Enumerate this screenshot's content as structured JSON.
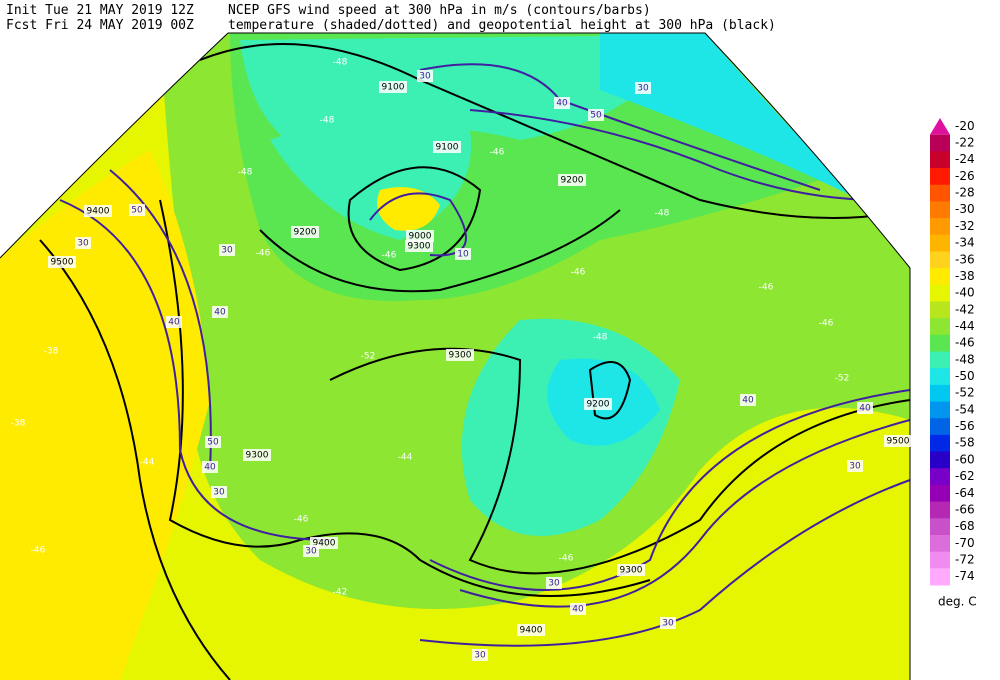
{
  "header": {
    "init": "Init  Tue 21 MAY 2019 12Z",
    "fcst": "Fcst Fri 24 MAY 2019 00Z",
    "line1": "NCEP GFS wind speed at 300 hPa in m/s (contours/barbs)",
    "line2": "temperature (shaded/dotted) and geopotential height at 300 hPa (black)"
  },
  "colorbar": {
    "labels": [
      "-20",
      "-22",
      "-24",
      "-26",
      "-28",
      "-30",
      "-32",
      "-34",
      "-36",
      "-38",
      "-40",
      "-42",
      "-44",
      "-46",
      "-48",
      "-50",
      "-52",
      "-54",
      "-56",
      "-58",
      "-60",
      "-62",
      "-64",
      "-66",
      "-68",
      "-70",
      "-72",
      "-74"
    ],
    "colors": [
      "#e0109f",
      "#b80058",
      "#c8002a",
      "#ff1a00",
      "#ff5500",
      "#ff7a00",
      "#ff9a00",
      "#ffb400",
      "#ffd21e",
      "#ffeb00",
      "#e6f500",
      "#b8e61e",
      "#8ce632",
      "#5ae650",
      "#3cf0b4",
      "#1ee6e6",
      "#00c8f0",
      "#0096f0",
      "#0064e6",
      "#0028e6",
      "#2800c8",
      "#7800c8",
      "#9600b4",
      "#b428b4",
      "#c850c8",
      "#dc6edc",
      "#f08cf0",
      "#ffaaff"
    ],
    "unit": "deg. C"
  },
  "map": {
    "labels": [
      "-48",
      "9100",
      "30",
      "40",
      "30",
      "50",
      "-48",
      "9100",
      "-46",
      "-48",
      "9200",
      "9400",
      "50",
      "9000",
      "9300",
      "30",
      "9200",
      "30",
      "-46",
      "-46",
      "10",
      "9500",
      "-48",
      "-46",
      "-46",
      "-46",
      "40",
      "40",
      "-38",
      "-48",
      "9300",
      "-52",
      "-52",
      "40",
      "9200",
      "-38",
      "50",
      "40",
      "9500",
      "9300",
      "-44",
      "-44",
      "40",
      "30",
      "30",
      "-46",
      "9400",
      "30",
      "-46",
      "-46",
      "9300",
      "30",
      "-42",
      "40",
      "30",
      "9400",
      "30"
    ]
  }
}
